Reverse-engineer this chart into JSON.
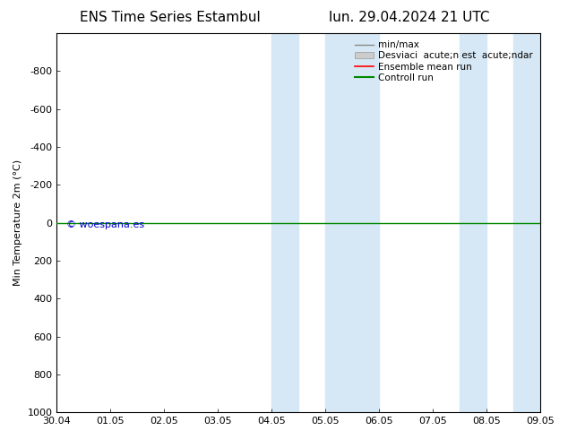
{
  "title_left": "ENS Time Series Estambul",
  "title_right": "lun. 29.04.2024 21 UTC",
  "ylabel": "Min Temperature 2m (°C)",
  "ylim_bottom": -1000,
  "ylim_top": 1000,
  "yticks": [
    -800,
    -600,
    -400,
    -200,
    0,
    200,
    400,
    600,
    800,
    1000
  ],
  "xtick_labels": [
    "30.04",
    "01.05",
    "02.05",
    "03.05",
    "04.05",
    "05.05",
    "06.05",
    "07.05",
    "08.05",
    "09.05"
  ],
  "xtick_positions": [
    0,
    1,
    2,
    3,
    4,
    5,
    6,
    7,
    8,
    9
  ],
  "xlim": [
    0,
    9
  ],
  "shaded_regions": [
    [
      4.0,
      4.5
    ],
    [
      5.0,
      6.0
    ],
    [
      7.5,
      8.0
    ],
    [
      8.5,
      9.0
    ]
  ],
  "shade_color": "#d6e8f5",
  "control_run_color": "#008800",
  "ensemble_mean_color": "#ff0000",
  "watermark": "© woespana.es",
  "watermark_color": "#0000cc",
  "legend_item_0": "min/max",
  "legend_item_1": "Desviaci  acute;n est  acute;ndar",
  "legend_item_2": "Ensemble mean run",
  "legend_item_3": "Controll run",
  "line_color_minmax": "#888888",
  "fill_color_std": "#cccccc",
  "title_fontsize": 11,
  "tick_fontsize": 8,
  "legend_fontsize": 7.5
}
